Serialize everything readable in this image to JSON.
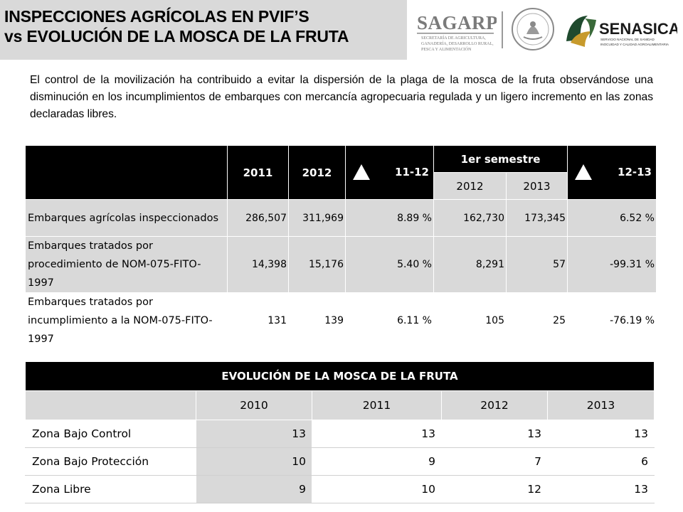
{
  "header": {
    "title_line1": "INSPECCIONES AGRÍCOLAS EN PVIF’S",
    "title_line2": "vs EVOLUCIÓN DE LA MOSCA DE LA FRUTA"
  },
  "logos": {
    "sagarpa_name": "SAGARPA",
    "sagarpa_sub1": "SECRETARÍA DE AGRICULTURA,",
    "sagarpa_sub2": "GANADERÍA, DESARROLLO RURAL,",
    "sagarpa_sub3": "PESCA Y ALIMENTACIÓN",
    "senasica_name": "SENASICA",
    "senasica_sub1": "SERVICIO NACIONAL DE SANIDAD",
    "senasica_sub2": "INOCUIDAD Y CALIDAD AGROALIMENTARIA"
  },
  "intro_text": "El control de la movilización ha contribuido a evitar la dispersión de la plaga de la mosca de la fruta observándose una disminución en los incumplimientos de embarques con mercancía agropecuaria regulada y un ligero incremento en las zonas declaradas libres.",
  "inspections": {
    "headers": {
      "y2011": "2011",
      "y2012": "2012",
      "chg_11_12": "11-12",
      "semester": "1er semestre",
      "sem2012": "2012",
      "sem2013": "2013",
      "chg_12_13": "12-13"
    },
    "rows": [
      {
        "label": "Embarques agrícolas inspeccionados",
        "y2011": "286,507",
        "y2012": "311,969",
        "chg1": "8.89 %",
        "s2012": "162,730",
        "s2013": "173,345",
        "chg2": "6.52 %"
      },
      {
        "label": "Embarques tratados por procedimiento de NOM-075-FITO-1997",
        "y2011": "14,398",
        "y2012": "15,176",
        "chg1": "5.40 %",
        "s2012": "8,291",
        "s2013": "57",
        "chg2": "-99.31 %"
      },
      {
        "label": "Embarques tratados por incumplimiento a la NOM-075-FITO-1997",
        "y2011": "131",
        "y2012": "139",
        "chg1": "6.11 %",
        "s2012": "105",
        "s2013": "25",
        "chg2": "-76.19 %"
      }
    ]
  },
  "fruit_fly": {
    "title": "EVOLUCIÓN DE LA MOSCA DE LA FRUTA",
    "years": [
      "2010",
      "2011",
      "2012",
      "2013"
    ],
    "rows": [
      {
        "label": "Zona Bajo Control",
        "values": [
          "13",
          "13",
          "13",
          "13"
        ]
      },
      {
        "label": "Zona Bajo Protección",
        "values": [
          "10",
          "9",
          "7",
          "6"
        ]
      },
      {
        "label": "Zona Libre",
        "values": [
          "9",
          "10",
          "12",
          "13"
        ]
      }
    ]
  }
}
